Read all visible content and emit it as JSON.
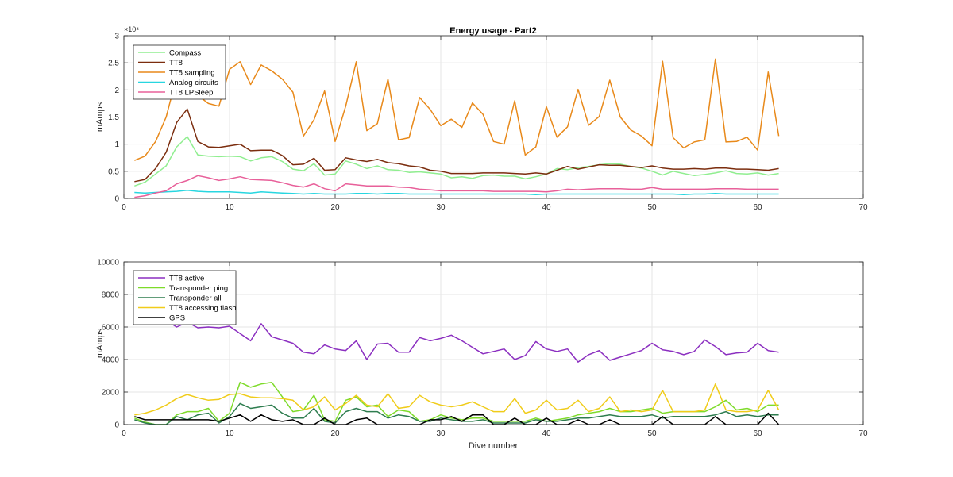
{
  "figure": {
    "title": "Energy usage - Part2",
    "xlabel": "Dive number",
    "ylabel": "mAmps"
  },
  "colors": {
    "Compass": "#90EE90",
    "TT8": "#7B2D0E",
    "TT8 sampling": "#E8891A",
    "Analog circuits": "#28D6E0",
    "TT8 LPSleep": "#E8609A",
    "TT8 active": "#8B2FC0",
    "Transponder ping": "#7EDB2A",
    "Transponder all": "#2E7D4F",
    "TT8 accessing flash": "#F0CC1A",
    "GPS": "#000000"
  },
  "chart_data": [
    {
      "type": "line",
      "title": "Energy usage - Part2",
      "xlabel": "",
      "ylabel": "mAmps",
      "exponent_label": "×10⁴",
      "xlim": [
        0,
        70
      ],
      "ylim": [
        0,
        30000
      ],
      "xticks": [
        0,
        10,
        20,
        30,
        40,
        50,
        60,
        70
      ],
      "yticks": [
        0,
        5000,
        10000,
        15000,
        20000,
        25000,
        30000
      ],
      "ytick_labels": [
        "0",
        "0.5",
        "1",
        "1.5",
        "2",
        "2.5",
        "3"
      ],
      "grid": true,
      "legend_location": "top-left",
      "x": [
        1,
        2,
        3,
        4,
        5,
        6,
        7,
        8,
        9,
        10,
        11,
        12,
        13,
        14,
        15,
        16,
        17,
        18,
        19,
        20,
        21,
        22,
        23,
        24,
        25,
        26,
        27,
        28,
        29,
        30,
        31,
        32,
        33,
        34,
        35,
        36,
        37,
        38,
        39,
        40,
        41,
        42,
        43,
        44,
        45,
        46,
        47,
        48,
        49,
        50,
        51,
        52,
        53,
        54,
        55,
        56,
        57,
        58,
        59,
        60,
        61,
        62
      ],
      "series": [
        {
          "name": "Compass",
          "values": [
            2300,
            3000,
            4500,
            6000,
            9500,
            11400,
            8000,
            7800,
            7700,
            7800,
            7700,
            6900,
            7500,
            7700,
            6800,
            5400,
            5100,
            6400,
            4300,
            4500,
            6900,
            6300,
            5500,
            6000,
            5300,
            5200,
            4800,
            4900,
            4700,
            4500,
            3800,
            4000,
            3700,
            4200,
            4300,
            4100,
            4100,
            3600,
            4000,
            4500,
            5500,
            5300,
            5700,
            5900,
            6200,
            6400,
            6300,
            5900,
            5600,
            5000,
            4300,
            5000,
            4600,
            4200,
            4400,
            4700,
            5100,
            4600,
            4500,
            4700,
            4300,
            4600
          ]
        },
        {
          "name": "TT8",
          "values": [
            3100,
            3500,
            5500,
            8500,
            14000,
            16500,
            10500,
            9500,
            9400,
            9700,
            10000,
            8800,
            8900,
            8900,
            7900,
            6200,
            6300,
            7400,
            5200,
            5300,
            7500,
            7100,
            6800,
            7200,
            6600,
            6400,
            6000,
            5800,
            5200,
            5000,
            4600,
            4600,
            4600,
            4700,
            4700,
            4700,
            4600,
            4500,
            4700,
            4500,
            5200,
            5900,
            5400,
            5800,
            6200,
            6100,
            6100,
            5900,
            5700,
            6000,
            5600,
            5400,
            5400,
            5500,
            5400,
            5600,
            5600,
            5400,
            5400,
            5300,
            5200,
            5500
          ]
        },
        {
          "name": "TT8 sampling",
          "values": [
            7000,
            7800,
            10500,
            15000,
            22500,
            24500,
            19000,
            17500,
            17000,
            23800,
            25200,
            21000,
            24600,
            23500,
            22000,
            19600,
            11500,
            14500,
            19800,
            10500,
            17000,
            25200,
            12500,
            13800,
            22000,
            10800,
            11200,
            18600,
            16400,
            13400,
            14600,
            13100,
            17600,
            15500,
            10500,
            10000,
            18000,
            8000,
            9500,
            16900,
            11300,
            13200,
            20100,
            13500,
            15100,
            21800,
            15000,
            12600,
            11500,
            9700,
            25300,
            11200,
            9300,
            10400,
            10800,
            25700,
            10400,
            10500,
            11300,
            8900,
            23300,
            11500
          ]
        },
        {
          "name": "Analog circuits",
          "values": [
            1100,
            1000,
            1100,
            1200,
            1300,
            1500,
            1300,
            1200,
            1200,
            1200,
            1100,
            1000,
            1200,
            1100,
            1000,
            900,
            800,
            900,
            800,
            800,
            800,
            900,
            900,
            800,
            900,
            900,
            800,
            800,
            800,
            800,
            800,
            800,
            800,
            800,
            800,
            800,
            800,
            800,
            700,
            800,
            800,
            800,
            800,
            800,
            800,
            800,
            800,
            800,
            800,
            800,
            800,
            800,
            700,
            800,
            800,
            900,
            800,
            800,
            800,
            800,
            800,
            800
          ]
        },
        {
          "name": "TT8 LPSleep",
          "values": [
            200,
            500,
            1000,
            1400,
            2700,
            3300,
            4200,
            3800,
            3300,
            3600,
            4000,
            3500,
            3400,
            3300,
            2900,
            2400,
            2100,
            2700,
            1800,
            1400,
            2700,
            2500,
            2300,
            2300,
            2300,
            2100,
            2000,
            1700,
            1600,
            1400,
            1400,
            1400,
            1400,
            1400,
            1300,
            1300,
            1300,
            1300,
            1300,
            1200,
            1400,
            1700,
            1600,
            1700,
            1800,
            1800,
            1800,
            1700,
            1700,
            2000,
            1700,
            1700,
            1700,
            1700,
            1700,
            1800,
            1800,
            1800,
            1700,
            1700,
            1700,
            1700
          ]
        }
      ]
    },
    {
      "type": "line",
      "title": "",
      "xlabel": "Dive number",
      "ylabel": "mAmps",
      "xlim": [
        0,
        70
      ],
      "ylim": [
        0,
        10000
      ],
      "xticks": [
        0,
        10,
        20,
        30,
        40,
        50,
        60,
        70
      ],
      "yticks": [
        0,
        2000,
        4000,
        6000,
        8000,
        10000
      ],
      "ytick_labels": [
        "0",
        "2000",
        "4000",
        "6000",
        "8000",
        "10000"
      ],
      "grid": true,
      "legend_location": "top-left",
      "x": [
        1,
        2,
        3,
        4,
        5,
        6,
        7,
        8,
        9,
        10,
        11,
        12,
        13,
        14,
        15,
        16,
        17,
        18,
        19,
        20,
        21,
        22,
        23,
        24,
        25,
        26,
        27,
        28,
        29,
        30,
        31,
        32,
        33,
        34,
        35,
        36,
        37,
        38,
        39,
        40,
        41,
        42,
        43,
        44,
        45,
        46,
        47,
        48,
        49,
        50,
        51,
        52,
        53,
        54,
        55,
        56,
        57,
        58,
        59,
        60,
        61,
        62
      ],
      "series": [
        {
          "name": "TT8 active",
          "values": [
            6300,
            6350,
            6400,
            6400,
            6000,
            6300,
            5950,
            6000,
            5950,
            6050,
            5600,
            5150,
            6200,
            5400,
            5200,
            5000,
            4450,
            4350,
            4900,
            4650,
            4550,
            5150,
            4000,
            4950,
            5000,
            4450,
            4450,
            5350,
            5150,
            5300,
            5500,
            5150,
            4750,
            4350,
            4500,
            4650,
            4000,
            4250,
            5100,
            4650,
            4500,
            4650,
            3850,
            4300,
            4550,
            3950,
            4150,
            4350,
            4550,
            5000,
            4600,
            4500,
            4300,
            4500,
            5200,
            4800,
            4300,
            4400,
            4450,
            5000,
            4550,
            4450
          ]
        },
        {
          "name": "Transponder ping",
          "values": [
            400,
            150,
            0,
            0,
            600,
            800,
            800,
            1000,
            200,
            700,
            2600,
            2300,
            2500,
            2600,
            1700,
            800,
            900,
            1800,
            300,
            200,
            1500,
            1700,
            1100,
            1200,
            500,
            900,
            800,
            200,
            300,
            600,
            400,
            300,
            400,
            400,
            200,
            200,
            200,
            200,
            400,
            200,
            300,
            400,
            600,
            700,
            800,
            1000,
            800,
            800,
            900,
            1000,
            700,
            800,
            800,
            800,
            800,
            1100,
            1500,
            900,
            1000,
            800,
            1200,
            1200
          ]
        },
        {
          "name": "Transponder all",
          "values": [
            300,
            100,
            0,
            0,
            500,
            300,
            600,
            700,
            100,
            500,
            1300,
            1000,
            1100,
            1200,
            700,
            400,
            400,
            1000,
            200,
            100,
            800,
            1000,
            800,
            800,
            400,
            600,
            500,
            200,
            200,
            400,
            300,
            200,
            200,
            300,
            100,
            100,
            100,
            100,
            300,
            200,
            200,
            300,
            400,
            400,
            500,
            600,
            500,
            500,
            500,
            600,
            400,
            500,
            500,
            500,
            500,
            600,
            800,
            500,
            600,
            500,
            600,
            600
          ]
        },
        {
          "name": "TT8 accessing flash",
          "values": [
            600,
            700,
            900,
            1200,
            1600,
            1850,
            1650,
            1500,
            1550,
            1850,
            1900,
            1700,
            1650,
            1650,
            1600,
            1500,
            900,
            1100,
            1700,
            900,
            1300,
            1800,
            1200,
            1100,
            1900,
            1000,
            1100,
            1800,
            1400,
            1200,
            1100,
            1200,
            1400,
            1100,
            800,
            800,
            1600,
            700,
            900,
            1500,
            900,
            1000,
            1500,
            800,
            1000,
            1700,
            800,
            900,
            800,
            900,
            2100,
            800,
            800,
            800,
            900,
            2500,
            900,
            800,
            800,
            900,
            2100,
            900
          ]
        },
        {
          "name": "GPS",
          "values": [
            500,
            300,
            300,
            300,
            300,
            300,
            300,
            300,
            200,
            400,
            600,
            200,
            600,
            300,
            200,
            300,
            0,
            0,
            400,
            0,
            0,
            300,
            400,
            0,
            0,
            0,
            0,
            0,
            300,
            300,
            500,
            200,
            600,
            600,
            0,
            0,
            400,
            0,
            0,
            400,
            0,
            0,
            300,
            0,
            0,
            300,
            0,
            0,
            0,
            0,
            500,
            0,
            0,
            0,
            0,
            500,
            0,
            0,
            0,
            0,
            700,
            0
          ]
        }
      ]
    }
  ]
}
